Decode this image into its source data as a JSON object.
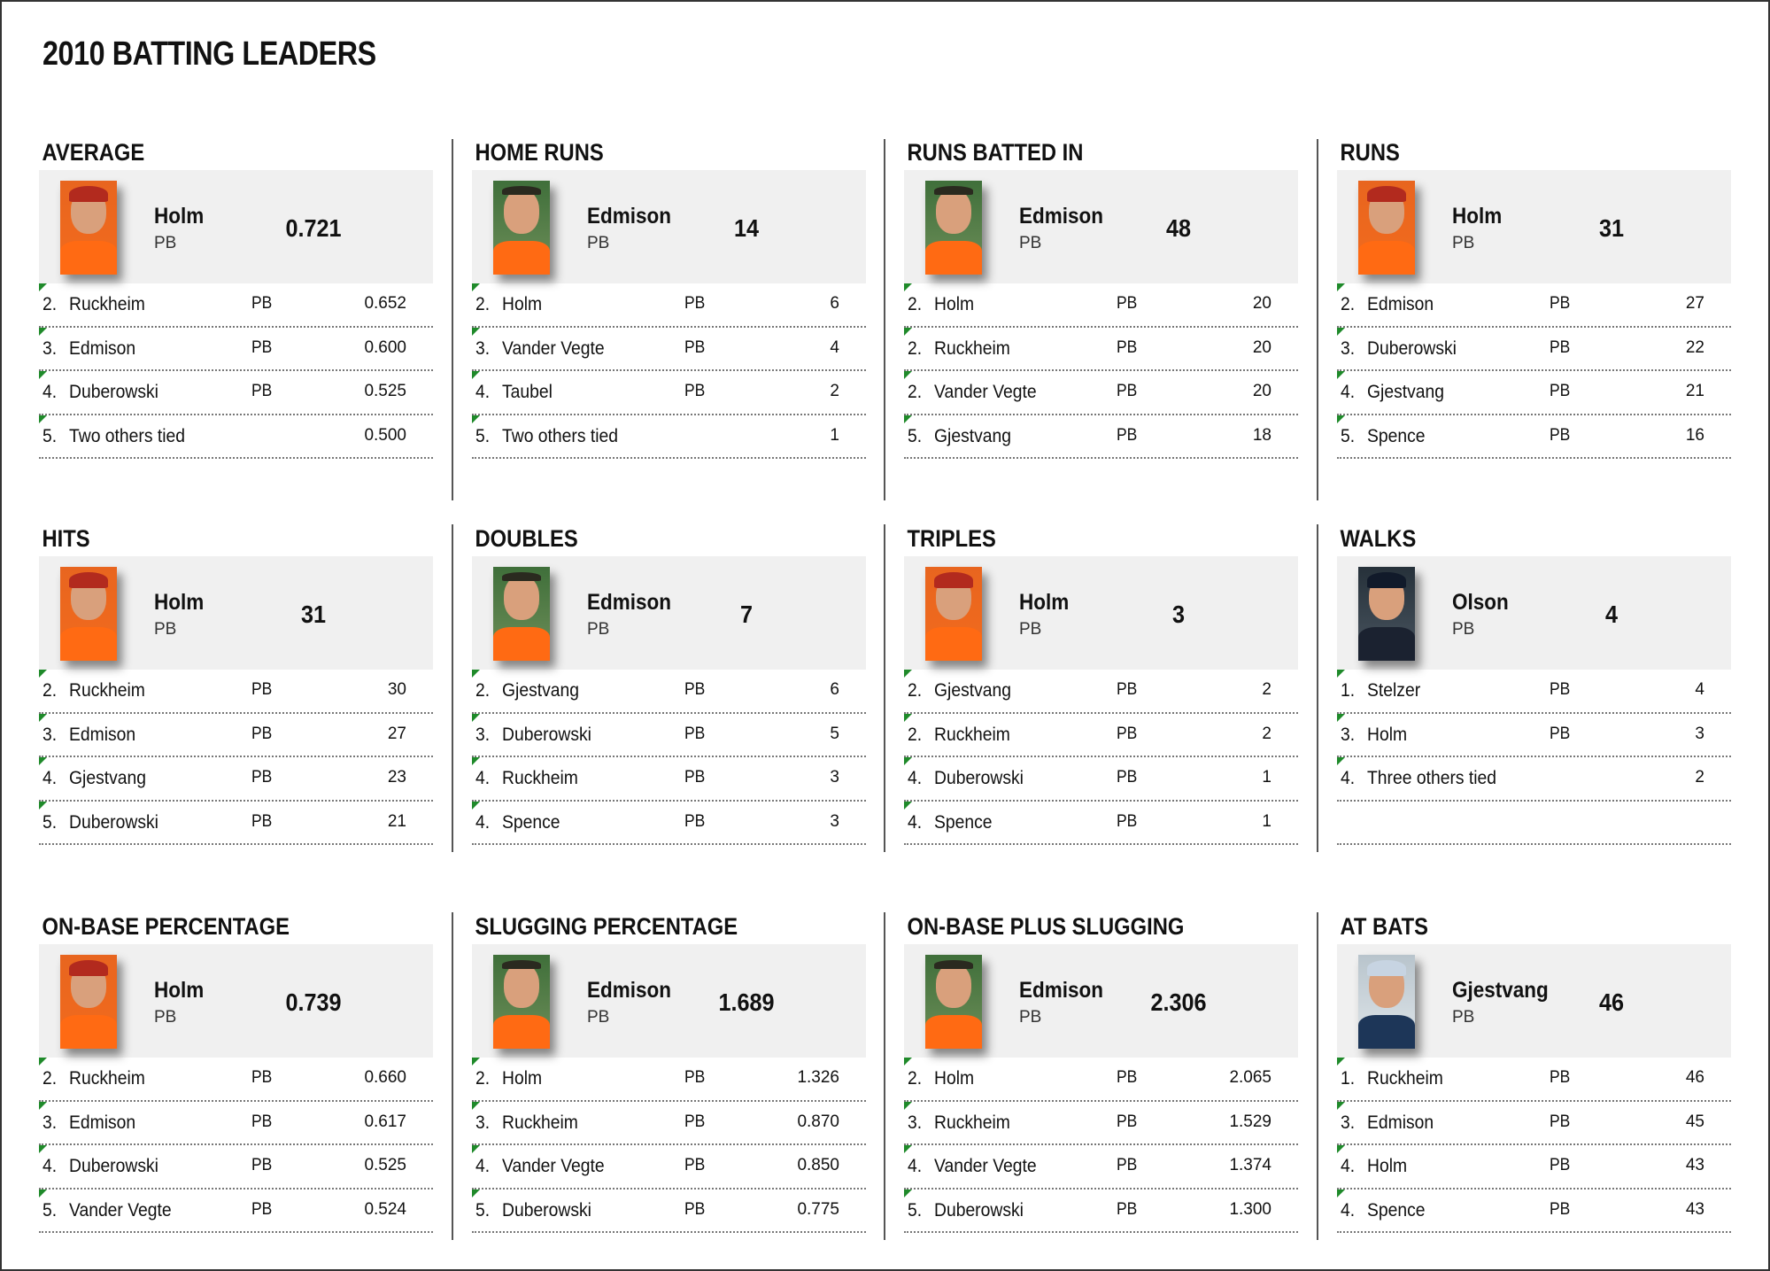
{
  "title": "2010 BATTING LEADERS",
  "categories": [
    {
      "title": "AVERAGE",
      "leader": {
        "name": "Holm",
        "team": "PB",
        "value": "0.721",
        "photo": "orange"
      },
      "rows": [
        {
          "rank": "2.",
          "name": "Ruckheim",
          "team": "PB",
          "value": "0.652"
        },
        {
          "rank": "3.",
          "name": "Edmison",
          "team": "PB",
          "value": "0.600"
        },
        {
          "rank": "4.",
          "name": "Duberowski",
          "team": "PB",
          "value": "0.525"
        },
        {
          "rank": "5.",
          "name": "Two others tied",
          "team": "",
          "value": "0.500"
        }
      ]
    },
    {
      "title": "HOME RUNS",
      "leader": {
        "name": "Edmison",
        "team": "PB",
        "value": "14",
        "photo": "green"
      },
      "rows": [
        {
          "rank": "2.",
          "name": "Holm",
          "team": "PB",
          "value": "6"
        },
        {
          "rank": "3.",
          "name": "Vander Vegte",
          "team": "PB",
          "value": "4"
        },
        {
          "rank": "4.",
          "name": "Taubel",
          "team": "PB",
          "value": "2"
        },
        {
          "rank": "5.",
          "name": "Two others tied",
          "team": "",
          "value": "1"
        }
      ]
    },
    {
      "title": "RUNS BATTED IN",
      "leader": {
        "name": "Edmison",
        "team": "PB",
        "value": "48",
        "photo": "green"
      },
      "rows": [
        {
          "rank": "2.",
          "name": "Holm",
          "team": "PB",
          "value": "20"
        },
        {
          "rank": "2.",
          "name": "Ruckheim",
          "team": "PB",
          "value": "20"
        },
        {
          "rank": "2.",
          "name": "Vander Vegte",
          "team": "PB",
          "value": "20"
        },
        {
          "rank": "5.",
          "name": "Gjestvang",
          "team": "PB",
          "value": "18"
        }
      ]
    },
    {
      "title": "RUNS",
      "leader": {
        "name": "Holm",
        "team": "PB",
        "value": "31",
        "photo": "orange"
      },
      "rows": [
        {
          "rank": "2.",
          "name": "Edmison",
          "team": "PB",
          "value": "27"
        },
        {
          "rank": "3.",
          "name": "Duberowski",
          "team": "PB",
          "value": "22"
        },
        {
          "rank": "4.",
          "name": "Gjestvang",
          "team": "PB",
          "value": "21"
        },
        {
          "rank": "5.",
          "name": "Spence",
          "team": "PB",
          "value": "16"
        }
      ]
    },
    {
      "title": "HITS",
      "leader": {
        "name": "Holm",
        "team": "PB",
        "value": "31",
        "photo": "orange"
      },
      "rows": [
        {
          "rank": "2.",
          "name": "Ruckheim",
          "team": "PB",
          "value": "30"
        },
        {
          "rank": "3.",
          "name": "Edmison",
          "team": "PB",
          "value": "27"
        },
        {
          "rank": "4.",
          "name": "Gjestvang",
          "team": "PB",
          "value": "23"
        },
        {
          "rank": "5.",
          "name": "Duberowski",
          "team": "PB",
          "value": "21"
        }
      ]
    },
    {
      "title": "DOUBLES",
      "leader": {
        "name": "Edmison",
        "team": "PB",
        "value": "7",
        "photo": "green"
      },
      "rows": [
        {
          "rank": "2.",
          "name": "Gjestvang",
          "team": "PB",
          "value": "6"
        },
        {
          "rank": "3.",
          "name": "Duberowski",
          "team": "PB",
          "value": "5"
        },
        {
          "rank": "4.",
          "name": "Ruckheim",
          "team": "PB",
          "value": "3"
        },
        {
          "rank": "4.",
          "name": "Spence",
          "team": "PB",
          "value": "3"
        }
      ]
    },
    {
      "title": "TRIPLES",
      "leader": {
        "name": "Holm",
        "team": "PB",
        "value": "3",
        "photo": "orange"
      },
      "rows": [
        {
          "rank": "2.",
          "name": "Gjestvang",
          "team": "PB",
          "value": "2"
        },
        {
          "rank": "2.",
          "name": "Ruckheim",
          "team": "PB",
          "value": "2"
        },
        {
          "rank": "4.",
          "name": "Duberowski",
          "team": "PB",
          "value": "1"
        },
        {
          "rank": "4.",
          "name": "Spence",
          "team": "PB",
          "value": "1"
        }
      ]
    },
    {
      "title": "WALKS",
      "leader": {
        "name": "Olson",
        "team": "PB",
        "value": "4",
        "photo": "dark"
      },
      "rows": [
        {
          "rank": "1.",
          "name": "Stelzer",
          "team": "PB",
          "value": "4"
        },
        {
          "rank": "3.",
          "name": "Holm",
          "team": "PB",
          "value": "3"
        },
        {
          "rank": "4.",
          "name": "Three others tied",
          "team": "",
          "value": "2"
        }
      ]
    },
    {
      "title": "ON-BASE PERCENTAGE",
      "leader": {
        "name": "Holm",
        "team": "PB",
        "value": "0.739",
        "photo": "orange"
      },
      "rows": [
        {
          "rank": "2.",
          "name": "Ruckheim",
          "team": "PB",
          "value": "0.660"
        },
        {
          "rank": "3.",
          "name": "Edmison",
          "team": "PB",
          "value": "0.617"
        },
        {
          "rank": "4.",
          "name": "Duberowski",
          "team": "PB",
          "value": "0.525"
        },
        {
          "rank": "5.",
          "name": "Vander Vegte",
          "team": "PB",
          "value": "0.524"
        }
      ]
    },
    {
      "title": "SLUGGING PERCENTAGE",
      "leader": {
        "name": "Edmison",
        "team": "PB",
        "value": "1.689",
        "photo": "green"
      },
      "rows": [
        {
          "rank": "2.",
          "name": "Holm",
          "team": "PB",
          "value": "1.326"
        },
        {
          "rank": "3.",
          "name": "Ruckheim",
          "team": "PB",
          "value": "0.870"
        },
        {
          "rank": "4.",
          "name": "Vander Vegte",
          "team": "PB",
          "value": "0.850"
        },
        {
          "rank": "5.",
          "name": "Duberowski",
          "team": "PB",
          "value": "0.775"
        }
      ]
    },
    {
      "title": "ON-BASE PLUS SLUGGING",
      "leader": {
        "name": "Edmison",
        "team": "PB",
        "value": "2.306",
        "photo": "green"
      },
      "rows": [
        {
          "rank": "2.",
          "name": "Holm",
          "team": "PB",
          "value": "2.065"
        },
        {
          "rank": "3.",
          "name": "Ruckheim",
          "team": "PB",
          "value": "1.529"
        },
        {
          "rank": "4.",
          "name": "Vander Vegte",
          "team": "PB",
          "value": "1.374"
        },
        {
          "rank": "5.",
          "name": "Duberowski",
          "team": "PB",
          "value": "1.300"
        }
      ]
    },
    {
      "title": "AT BATS",
      "leader": {
        "name": "Gjestvang",
        "team": "PB",
        "value": "46",
        "photo": "light"
      },
      "rows": [
        {
          "rank": "1.",
          "name": "Ruckheim",
          "team": "PB",
          "value": "46"
        },
        {
          "rank": "3.",
          "name": "Edmison",
          "team": "PB",
          "value": "45"
        },
        {
          "rank": "4.",
          "name": "Holm",
          "team": "PB",
          "value": "43"
        },
        {
          "rank": "4.",
          "name": "Spence",
          "team": "PB",
          "value": "43"
        }
      ]
    }
  ]
}
